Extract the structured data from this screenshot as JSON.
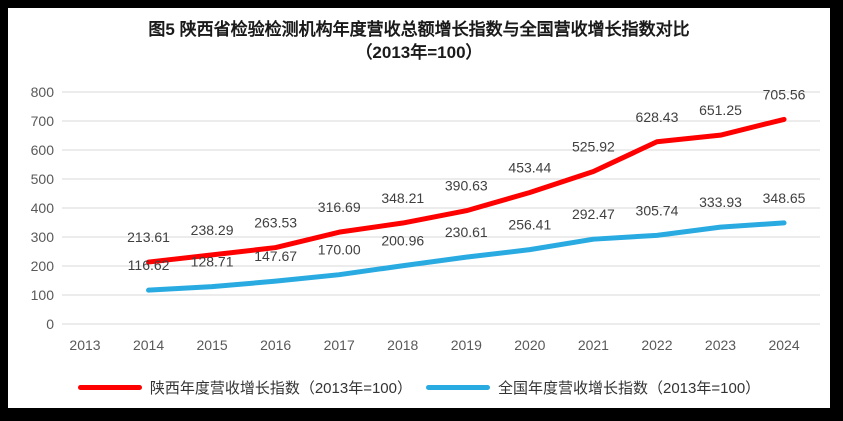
{
  "title": {
    "line1": "图5  陕西省检验检测机构年度营收总额增长指数与全国营收增长指数对比",
    "line2": "（2013年=100）"
  },
  "axes": {
    "y_ticks": [
      "800",
      "700",
      "600",
      "500",
      "400",
      "300",
      "200",
      "100",
      "0"
    ],
    "x_ticks": [
      "2013",
      "2014",
      "2015",
      "2016",
      "2017",
      "2018",
      "2019",
      "2020",
      "2021",
      "2022",
      "2023",
      "2024"
    ]
  },
  "chart_data": {
    "type": "line",
    "title": "图5 陕西省检验检测机构年度营收总额增长指数与全国营收增长指数对比（2013年=100）",
    "categories": [
      "2013",
      "2014",
      "2015",
      "2016",
      "2017",
      "2018",
      "2019",
      "2020",
      "2021",
      "2022",
      "2023",
      "2024"
    ],
    "series": [
      {
        "name": "陕西年度营收增长指数（2013年=100）",
        "color": "#FF0000",
        "values": [
          null,
          213.61,
          238.29,
          263.53,
          316.69,
          348.21,
          390.63,
          453.44,
          525.92,
          628.43,
          651.25,
          705.56
        ]
      },
      {
        "name": "全国年度营收增长指数（2013年=100）",
        "color": "#29ABE2",
        "values": [
          null,
          116.62,
          128.71,
          147.67,
          170.0,
          200.96,
          230.61,
          256.41,
          292.47,
          305.74,
          333.93,
          348.65
        ]
      }
    ],
    "ylim": [
      0,
      800
    ],
    "ytick_step": 100,
    "grid": true,
    "data_labels": true,
    "label_decimals": 2,
    "legend_position": "bottom"
  },
  "colors": {
    "grid": "#D9D9D9",
    "tick_label": "#595959",
    "data_label": "#404040",
    "line_width": "5"
  }
}
